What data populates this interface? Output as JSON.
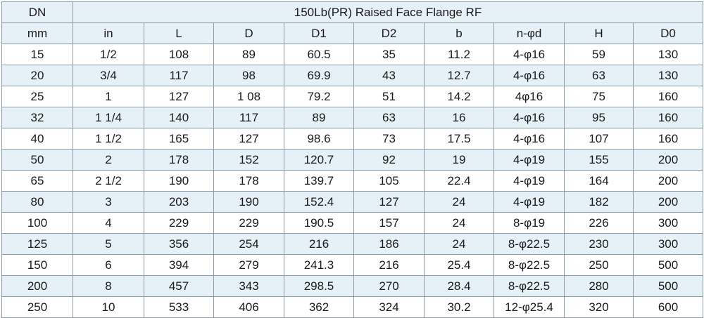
{
  "title_row": {
    "dn_label": "DN",
    "title": "150Lb(PR) Raised Face Flange RF"
  },
  "headers": [
    "mm",
    "in",
    "L",
    "D",
    "D1",
    "D2",
    "b",
    "n-φd",
    "H",
    "D0"
  ],
  "rows": [
    [
      "15",
      "1/2",
      "108",
      "89",
      "60.5",
      "35",
      "11.2",
      "4-φ16",
      "59",
      "130"
    ],
    [
      "20",
      "3/4",
      "117",
      "98",
      "69.9",
      "43",
      "12.7",
      "4-φ16",
      "63",
      "130"
    ],
    [
      "25",
      "1",
      "127",
      "1 08",
      "79.2",
      "51",
      "14.2",
      "4φ16",
      "75",
      "160"
    ],
    [
      "32",
      "1 1/4",
      "140",
      "117",
      "89",
      "63",
      "16",
      "4-φ16",
      "95",
      "160"
    ],
    [
      "40",
      "1 1/2",
      "165",
      "127",
      "98.6",
      "73",
      "17.5",
      "4-φ16",
      "107",
      "160"
    ],
    [
      "50",
      "2",
      "178",
      "152",
      "120.7",
      "92",
      "19",
      "4-φ19",
      "155",
      "200"
    ],
    [
      "65",
      "2 1/2",
      "190",
      "178",
      "139.7",
      "105",
      "22.4",
      "4-φ19",
      "164",
      "200"
    ],
    [
      "80",
      "3",
      "203",
      "190",
      "152.4",
      "127",
      "24",
      "4-φ19",
      "182",
      "200"
    ],
    [
      "100",
      "4",
      "229",
      "229",
      "190.5",
      "157",
      "24",
      "8-φ19",
      "226",
      "300"
    ],
    [
      "125",
      "5",
      "356",
      "254",
      "216",
      "186",
      "24",
      "8-φ22.5",
      "230",
      "300"
    ],
    [
      "150",
      "6",
      "394",
      "279",
      "241.3",
      "216",
      "25.4",
      "8-φ22.5",
      "250",
      "500"
    ],
    [
      "200",
      "8",
      "457",
      "343",
      "298.5",
      "270",
      "28.4",
      "8-φ22.5",
      "280",
      "500"
    ],
    [
      "250",
      "10",
      "533",
      "406",
      "362",
      "324",
      "30.2",
      "12-φ25.4",
      "320",
      "600"
    ]
  ],
  "colors": {
    "header_fill": "#e6f0f7",
    "alt_row_fill": "#e6f0f7",
    "border": "#8a9aa6"
  }
}
